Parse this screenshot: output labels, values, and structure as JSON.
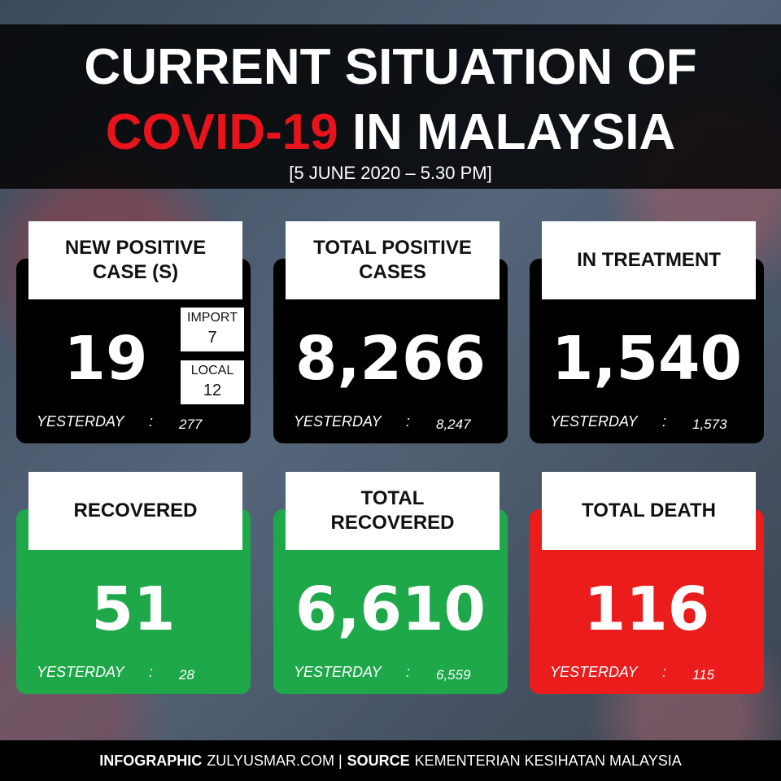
{
  "header": {
    "title_line1": "CURRENT SITUATION OF",
    "title_highlight": "COVID-19",
    "title_rest": "IN MALAYSIA",
    "date": "[5 JUNE 2020 – 5.30 PM]"
  },
  "labels": {
    "yesterday": "YESTERDAY",
    "separator": ":"
  },
  "cards": [
    {
      "label": "NEW POSITIVE CASE (S)",
      "value": "19",
      "yesterday_value": "277",
      "import_label": "IMPORT",
      "import_value": "7",
      "local_label": "LOCAL",
      "local_value": "12"
    },
    {
      "label": "TOTAL POSITIVE CASES",
      "value": "8,266",
      "yesterday_value": "8,247"
    },
    {
      "label": "IN TREATMENT",
      "value": "1,540",
      "yesterday_value": "1,573"
    },
    {
      "label": "RECOVERED",
      "value": "51",
      "yesterday_value": "28"
    },
    {
      "label": "TOTAL RECOVERED",
      "value": "6,610",
      "yesterday_value": "6,559"
    },
    {
      "label": "TOTAL DEATH",
      "value": "116",
      "yesterday_value": "115"
    }
  ],
  "footer": {
    "brand_label": "INFOGRAPHIC",
    "brand": "ZULYUSMAR.COM |",
    "source_label": "SOURCE",
    "source": "KEMENTERIAN KESIHATAN MALAYSIA"
  }
}
